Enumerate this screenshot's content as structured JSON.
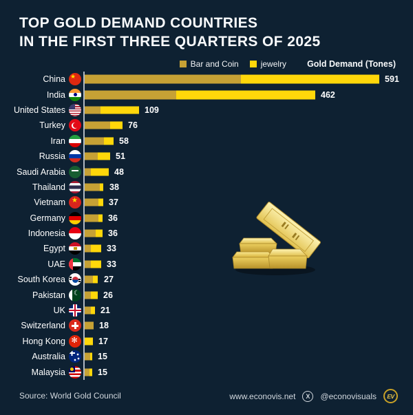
{
  "title": {
    "line1": "TOP GOLD DEMAND COUNTRIES",
    "line2": "IN THE FIRST THREE QUARTERS OF 2025"
  },
  "legend": {
    "bar_and_coin": "Bar and Coin",
    "jewelry": "jewelry",
    "axis_label": "Gold Demand (Tones)"
  },
  "colors": {
    "background": "#0e2132",
    "bar_and_coin": "#c6a135",
    "jewelry": "#ffd70a",
    "axis_line": "#c2cad2",
    "text": "#ffffff"
  },
  "chart_data": {
    "type": "bar",
    "orientation": "horizontal",
    "title": "Gold Demand (Tones)",
    "xlabel": "Gold Demand (Tones)",
    "ylabel": "",
    "xlim": [
      0,
      620
    ],
    "grid": false,
    "legend_position": "top-right",
    "categories": [
      "China",
      "India",
      "United States",
      "Turkey",
      "Iran",
      "Russia",
      "Saudi Arabia",
      "Thailand",
      "Vietnam",
      "Germany",
      "Indonesia",
      "Egypt",
      "UAE",
      "South Korea",
      "Pakistan",
      "UK",
      "Switzerland",
      "Hong Kong",
      "Australia",
      "Malaysia"
    ],
    "flags": [
      "cn",
      "in",
      "us",
      "tr",
      "ir",
      "ru",
      "sa",
      "th",
      "vn",
      "de",
      "id",
      "eg",
      "ae",
      "kr",
      "pk",
      "gb",
      "ch",
      "hk",
      "au",
      "my"
    ],
    "series": [
      {
        "name": "Bar and Coin",
        "color": "#c6a135",
        "values": [
          313,
          184,
          31,
          51,
          38,
          26,
          12,
          30,
          28,
          28,
          22,
          13,
          13,
          17,
          12,
          12,
          18,
          0,
          11,
          10
        ]
      },
      {
        "name": "jewelry",
        "color": "#ffd70a",
        "values": [
          278,
          278,
          78,
          25,
          20,
          25,
          36,
          8,
          9,
          8,
          14,
          20,
          20,
          10,
          14,
          9,
          0,
          17,
          4,
          5
        ]
      }
    ],
    "totals": [
      591,
      462,
      109,
      76,
      58,
      51,
      48,
      38,
      37,
      36,
      36,
      33,
      33,
      27,
      26,
      21,
      18,
      17,
      15,
      15
    ]
  },
  "footer": {
    "source": "Source: World Gold Council",
    "website": "www.econovis.net",
    "x_icon_label": "X",
    "handle": "@econovisuals",
    "logo": "EV"
  }
}
